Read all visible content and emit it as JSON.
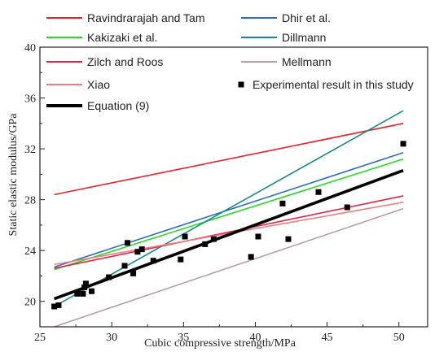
{
  "chart_data": {
    "type": "line",
    "title": "",
    "xlabel": "Cubic compressive strength/MPa",
    "ylabel": "Static elastic modulus/GPa",
    "xlim": [
      25,
      52
    ],
    "ylim": [
      18,
      40
    ],
    "x_ticks": [
      25,
      30,
      35,
      40,
      45,
      50
    ],
    "y_ticks": [
      20,
      24,
      28,
      32,
      36,
      40
    ],
    "grid": false,
    "legend_position": "top",
    "series": [
      {
        "name": "Ravindrarajah and Tam",
        "kind": "line",
        "color": "#e8202a",
        "width": 1.6,
        "x": [
          26,
          50.3
        ],
        "y": [
          28.4,
          34.0
        ]
      },
      {
        "name": "Dhir et al.",
        "kind": "line",
        "color": "#2a6fbf",
        "width": 1.6,
        "x": [
          26,
          50.3
        ],
        "y": [
          22.7,
          31.7
        ]
      },
      {
        "name": "Kakizaki et al.",
        "kind": "line",
        "color": "#22dd22",
        "width": 1.6,
        "x": [
          26,
          50.3
        ],
        "y": [
          22.5,
          31.2
        ]
      },
      {
        "name": "Dillmann",
        "kind": "line",
        "color": "#1a8a8a",
        "width": 1.6,
        "x": [
          26,
          50.3
        ],
        "y": [
          19.6,
          35.0
        ]
      },
      {
        "name": "Zilch and Roos",
        "kind": "line",
        "color": "#e0254b",
        "width": 1.6,
        "x": [
          26,
          50.3
        ],
        "y": [
          22.6,
          28.3
        ]
      },
      {
        "name": "Mellmann",
        "kind": "line",
        "color": "#bc9aa6",
        "width": 1.6,
        "x": [
          26,
          50.3
        ],
        "y": [
          18.0,
          27.3
        ]
      },
      {
        "name": "Xiao",
        "kind": "line",
        "color": "#f47b7b",
        "width": 1.6,
        "x": [
          26,
          50.3
        ],
        "y": [
          22.9,
          27.8
        ]
      },
      {
        "name": "Experimental result in this study",
        "kind": "scatter",
        "color": "#000000",
        "x": [
          26.0,
          26.3,
          27.6,
          28.0,
          28.1,
          28.2,
          28.6,
          29.8,
          30.9,
          31.1,
          31.5,
          31.8,
          32.1,
          32.9,
          34.8,
          35.1,
          36.5,
          37.1,
          39.7,
          40.2,
          41.9,
          42.3,
          44.4,
          46.4,
          50.3
        ],
        "y": [
          19.6,
          19.7,
          20.6,
          20.6,
          21.1,
          21.4,
          20.8,
          21.9,
          22.8,
          24.6,
          22.2,
          23.9,
          24.1,
          23.2,
          23.3,
          25.1,
          24.5,
          24.9,
          23.5,
          25.1,
          27.7,
          24.9,
          28.6,
          27.4,
          32.4
        ]
      },
      {
        "name": "Equation (9)",
        "kind": "line",
        "color": "#000000",
        "width": 3.6,
        "x": [
          26,
          50.3
        ],
        "y": [
          20.2,
          30.3
        ]
      }
    ]
  },
  "legend": {
    "entries": [
      {
        "label": "Ravindrarajah and Tam",
        "color": "#e8202a",
        "kind": "line",
        "width": 2,
        "col": 0,
        "row": 0
      },
      {
        "label": "Dhir et al.",
        "color": "#2a6fbf",
        "kind": "line",
        "width": 2,
        "col": 1,
        "row": 0
      },
      {
        "label": "Kakizaki et al.",
        "color": "#22dd22",
        "kind": "line",
        "width": 2,
        "col": 0,
        "row": 1
      },
      {
        "label": "Dillmann",
        "color": "#1a8a8a",
        "kind": "line",
        "width": 2,
        "col": 1,
        "row": 1
      },
      {
        "label": "Zilch and Roos",
        "color": "#e0254b",
        "kind": "line",
        "width": 2,
        "col": 0,
        "row": 2
      },
      {
        "label": "Mellmann",
        "color": "#bc9aa6",
        "kind": "line",
        "width": 2,
        "col": 1,
        "row": 2
      },
      {
        "label": "Xiao",
        "color": "#f47b7b",
        "kind": "line",
        "width": 2,
        "col": 0,
        "row": 3
      },
      {
        "label": "Experimental result in this study",
        "color": "#000000",
        "kind": "marker",
        "col": 1,
        "row": 3
      },
      {
        "label": "Equation (9)",
        "color": "#000000",
        "kind": "line",
        "width": 4,
        "col": 0,
        "row": 4
      }
    ]
  }
}
